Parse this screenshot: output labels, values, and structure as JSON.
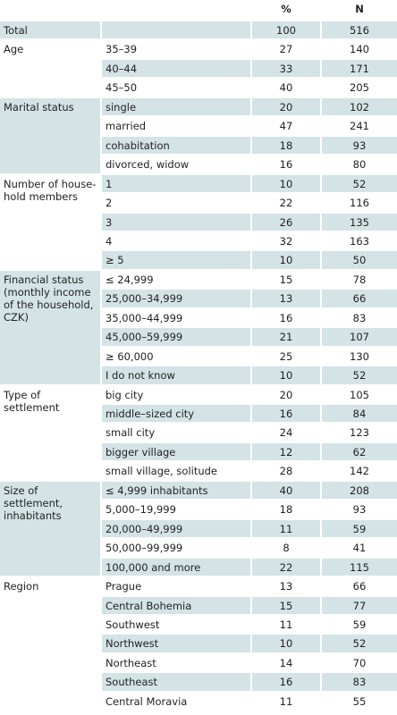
{
  "header": {
    "columns": [
      "%",
      "N"
    ]
  },
  "total": {
    "label": "Total",
    "percent": 100,
    "n": 516
  },
  "groups": [
    {
      "label": "Age",
      "rows": [
        [
          "35–39",
          27,
          140
        ],
        [
          "40–44",
          33,
          171
        ],
        [
          "45–50",
          40,
          205
        ]
      ]
    },
    {
      "label": "Marital status",
      "rows": [
        [
          "single",
          20,
          102
        ],
        [
          "married",
          47,
          241
        ],
        [
          "cohabitation",
          18,
          93
        ],
        [
          "divorced, widow",
          16,
          80
        ]
      ]
    },
    {
      "label": "Number of house-hold members",
      "rows": [
        [
          "1",
          10,
          52
        ],
        [
          "2",
          22,
          116
        ],
        [
          "3",
          26,
          135
        ],
        [
          "4",
          32,
          163
        ],
        [
          "≥ 5",
          10,
          50
        ]
      ]
    },
    {
      "label": "Financial status (monthly income of the household, CZK)",
      "rows": [
        [
          "≤ 24,999",
          15,
          78
        ],
        [
          "25,000–34,999",
          13,
          66
        ],
        [
          "35,000–44,999",
          16,
          83
        ],
        [
          "45,000–59,999",
          21,
          107
        ],
        [
          "≥ 60,000",
          25,
          130
        ],
        [
          "I do not know",
          10,
          52
        ]
      ]
    },
    {
      "label": "Type of settlement",
      "rows": [
        [
          "big city",
          20,
          105
        ],
        [
          "middle–sized city",
          16,
          84
        ],
        [
          "small city",
          24,
          123
        ],
        [
          "bigger village",
          12,
          62
        ],
        [
          "small village, solitude",
          28,
          142
        ]
      ]
    },
    {
      "label": "Size of settlement, inhabitants",
      "rows": [
        [
          "≤ 4,999 inhabitants",
          40,
          208
        ],
        [
          "5,000–19,999",
          18,
          93
        ],
        [
          "20,000–49,999",
          11,
          59
        ],
        [
          "50,000–99,999",
          8,
          41
        ],
        [
          "100,000 and more",
          22,
          115
        ]
      ]
    },
    {
      "label": "Region",
      "rows": [
        [
          "Prague",
          13,
          66
        ],
        [
          "Central Bohemia",
          15,
          77
        ],
        [
          "Southwest",
          11,
          59
        ],
        [
          "Northwest",
          10,
          52
        ],
        [
          "Northeast",
          14,
          70
        ],
        [
          "Southeast",
          16,
          83
        ],
        [
          "Central Moravia",
          11,
          55
        ]
      ]
    }
  ]
}
